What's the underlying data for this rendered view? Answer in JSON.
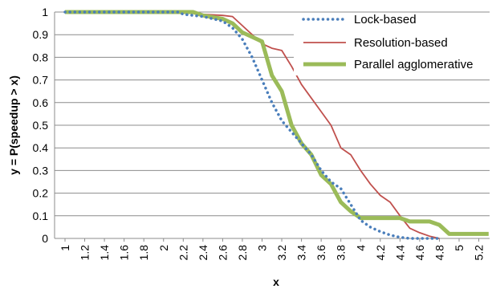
{
  "chart_data": {
    "type": "line",
    "xlabel": "x",
    "ylabel": "y = P(speedup > x)",
    "xlim": [
      1,
      5.3
    ],
    "ylim": [
      0,
      1
    ],
    "x_ticks": [
      "1",
      "1.2",
      "1.4",
      "1.6",
      "1.8",
      "2",
      "2.2",
      "2.4",
      "2.6",
      "2.8",
      "3",
      "3.2",
      "3.4",
      "3.6",
      "3.8",
      "4",
      "4.2",
      "4.4",
      "4.6",
      "4.8",
      "5",
      "5.2"
    ],
    "y_ticks": [
      "0",
      "0.1",
      "0.2",
      "0.3",
      "0.4",
      "0.5",
      "0.6",
      "0.7",
      "0.8",
      "0.9",
      "1"
    ],
    "grid": true,
    "legend_position": "top-right",
    "series": [
      {
        "name": "Lock-based",
        "color": "#4a7ebb",
        "style": "dotted",
        "points": [
          [
            1.0,
            1.0
          ],
          [
            2.15,
            1.0
          ],
          [
            2.2,
            0.99
          ],
          [
            2.4,
            0.98
          ],
          [
            2.6,
            0.96
          ],
          [
            2.7,
            0.93
          ],
          [
            2.8,
            0.88
          ],
          [
            2.9,
            0.8
          ],
          [
            3.0,
            0.7
          ],
          [
            3.1,
            0.6
          ],
          [
            3.2,
            0.52
          ],
          [
            3.3,
            0.47
          ],
          [
            3.4,
            0.42
          ],
          [
            3.5,
            0.37
          ],
          [
            3.6,
            0.3
          ],
          [
            3.7,
            0.25
          ],
          [
            3.8,
            0.22
          ],
          [
            3.9,
            0.15
          ],
          [
            4.0,
            0.08
          ],
          [
            4.1,
            0.05
          ],
          [
            4.2,
            0.03
          ],
          [
            4.3,
            0.015
          ],
          [
            4.4,
            0.005
          ],
          [
            4.5,
            0.0
          ],
          [
            4.8,
            0.0
          ]
        ]
      },
      {
        "name": "Resolution-based",
        "color": "#c0504d",
        "style": "solid",
        "points": [
          [
            1.0,
            1.0
          ],
          [
            2.3,
            1.0
          ],
          [
            2.4,
            0.99
          ],
          [
            2.6,
            0.985
          ],
          [
            2.7,
            0.98
          ],
          [
            2.8,
            0.94
          ],
          [
            2.9,
            0.9
          ],
          [
            3.0,
            0.86
          ],
          [
            3.1,
            0.84
          ],
          [
            3.2,
            0.83
          ],
          [
            3.3,
            0.76
          ],
          [
            3.4,
            0.68
          ],
          [
            3.5,
            0.62
          ],
          [
            3.6,
            0.56
          ],
          [
            3.7,
            0.5
          ],
          [
            3.8,
            0.4
          ],
          [
            3.9,
            0.37
          ],
          [
            4.0,
            0.3
          ],
          [
            4.1,
            0.24
          ],
          [
            4.2,
            0.19
          ],
          [
            4.3,
            0.16
          ],
          [
            4.4,
            0.1
          ],
          [
            4.5,
            0.045
          ],
          [
            4.6,
            0.025
          ],
          [
            4.7,
            0.01
          ],
          [
            4.8,
            0.0
          ]
        ]
      },
      {
        "name": "Parallel agglomerative",
        "color": "#9bbb59",
        "style": "solid",
        "points": [
          [
            1.0,
            1.0
          ],
          [
            2.3,
            1.0
          ],
          [
            2.4,
            0.985
          ],
          [
            2.6,
            0.97
          ],
          [
            2.7,
            0.95
          ],
          [
            2.8,
            0.91
          ],
          [
            2.9,
            0.89
          ],
          [
            3.0,
            0.87
          ],
          [
            3.1,
            0.72
          ],
          [
            3.2,
            0.65
          ],
          [
            3.3,
            0.5
          ],
          [
            3.4,
            0.42
          ],
          [
            3.5,
            0.37
          ],
          [
            3.6,
            0.28
          ],
          [
            3.7,
            0.24
          ],
          [
            3.8,
            0.16
          ],
          [
            3.9,
            0.12
          ],
          [
            4.0,
            0.09
          ],
          [
            4.2,
            0.09
          ],
          [
            4.4,
            0.09
          ],
          [
            4.5,
            0.075
          ],
          [
            4.6,
            0.075
          ],
          [
            4.7,
            0.075
          ],
          [
            4.8,
            0.06
          ],
          [
            4.9,
            0.02
          ],
          [
            5.0,
            0.02
          ],
          [
            5.3,
            0.02
          ]
        ]
      }
    ]
  }
}
